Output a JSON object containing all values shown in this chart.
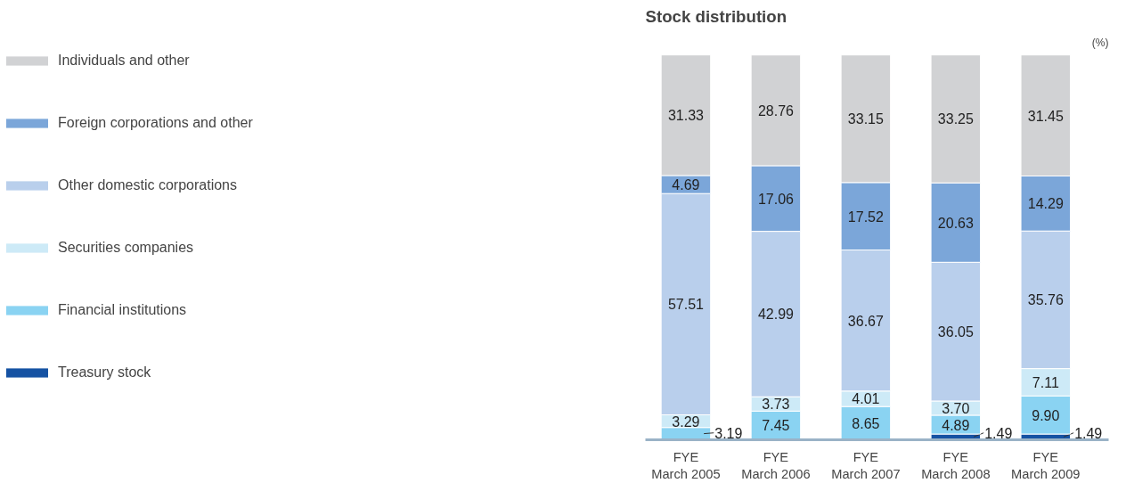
{
  "chart_data": {
    "type": "bar",
    "title": "Stock distribution",
    "annotations": [
      "(%)"
    ],
    "categories": [
      "FYE\nMarch 2005",
      "FYE\nMarch 2006",
      "FYE\nMarch 2007",
      "FYE\nMarch 2008",
      "FYE\nMarch 2009"
    ],
    "stacked": true,
    "legend": "left",
    "grid": false,
    "series": [
      {
        "name": "Treasury stock",
        "color": "#1552a3",
        "values": [
          null,
          null,
          null,
          1.49,
          1.49
        ],
        "value_labels": [
          null,
          null,
          null,
          "1.49",
          "1.49"
        ]
      },
      {
        "name": "Financial institutions",
        "color": "#8ad3f2",
        "values": [
          3.19,
          7.45,
          8.65,
          4.89,
          9.9
        ],
        "value_labels": [
          "3.19",
          "7.45",
          "8.65",
          "4.89",
          "9.90"
        ]
      },
      {
        "name": "Securities companies",
        "color": "#cdeaf7",
        "values": [
          3.29,
          3.73,
          4.01,
          3.7,
          7.11
        ],
        "value_labels": [
          "3.29",
          "3.73",
          "4.01",
          "3.70",
          "7.11"
        ]
      },
      {
        "name": "Other domestic corporations",
        "color": "#b9cfec",
        "values": [
          57.51,
          42.99,
          36.67,
          36.05,
          35.76
        ],
        "value_labels": [
          "57.51",
          "42.99",
          "36.67",
          "36.05",
          "35.76"
        ]
      },
      {
        "name": "Foreign corporations and other",
        "color": "#7ba6d9",
        "values": [
          4.69,
          17.06,
          17.52,
          20.63,
          14.29
        ],
        "value_labels": [
          "4.69",
          "17.06",
          "17.52",
          "20.63",
          "14.29"
        ]
      },
      {
        "name": "Individuals and other",
        "color": "#d1d2d4",
        "values": [
          31.33,
          28.76,
          33.15,
          33.25,
          31.45
        ],
        "value_labels": [
          "31.33",
          "28.76",
          "33.15",
          "33.25",
          "31.45"
        ]
      }
    ]
  }
}
